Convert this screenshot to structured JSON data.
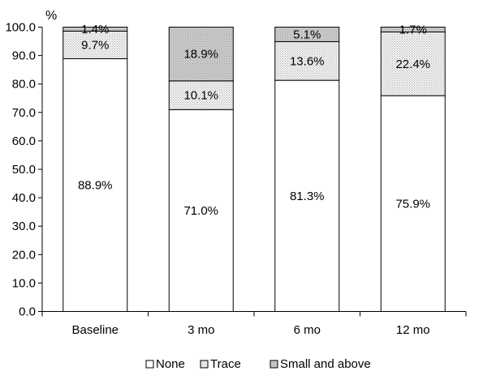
{
  "chart_data": {
    "type": "bar",
    "stacked": true,
    "y_unit": "%",
    "categories": [
      "Baseline",
      "3 mo",
      "6 mo",
      "12 mo"
    ],
    "series": [
      {
        "name": "None",
        "values": [
          88.9,
          71.0,
          81.3,
          75.9
        ],
        "labels": [
          "88.9%",
          "71.0%",
          "81.3%",
          "75.9%"
        ]
      },
      {
        "name": "Trace",
        "values": [
          9.7,
          10.1,
          13.6,
          22.4
        ],
        "labels": [
          "9.7%",
          "10.1%",
          "13.6%",
          "22.4%"
        ]
      },
      {
        "name": "Small and above",
        "values": [
          1.4,
          18.9,
          5.1,
          1.7
        ],
        "labels": [
          "1.4%",
          "18.9%",
          "5.1%",
          "1.7%"
        ]
      }
    ],
    "ylim": [
      0,
      100
    ],
    "yticks": [
      "0.0",
      "10.0",
      "20.0",
      "30.0",
      "40.0",
      "50.0",
      "60.0",
      "70.0",
      "80.0",
      "90.0",
      "100.0"
    ],
    "grid": false,
    "legend_position": "bottom",
    "colors": {
      "None": "#ffffff",
      "Trace": "#ececec",
      "Small and above": "#c6c6c6"
    }
  }
}
